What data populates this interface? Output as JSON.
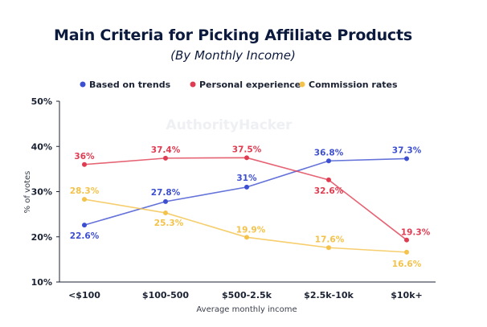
{
  "title": "Main Criteria for Picking Affiliate Products",
  "subtitle": "(By Monthly Income)",
  "watermark": "AuthorityHacker",
  "chart_data": {
    "type": "line",
    "categories": [
      "<$100",
      "$100-500",
      "$500-2.5k",
      "$2.5k-10k",
      "$10k+"
    ],
    "xlabel": "Average monthly income",
    "ylabel": "% of votes",
    "ylim": [
      10,
      50
    ],
    "yticks": [
      "10%",
      "20%",
      "30%",
      "40%",
      "50%"
    ],
    "grid": false,
    "legend_position": "top",
    "series": [
      {
        "name": "Based on trends",
        "color": "#3d4fd1",
        "values": [
          22.6,
          27.8,
          31,
          36.8,
          37.3
        ],
        "labels": [
          "22.6%",
          "27.8%",
          "31%",
          "36.8%",
          "37.3%"
        ]
      },
      {
        "name": "Personal experience",
        "color": "#e03c51",
        "values": [
          36,
          37.4,
          37.5,
          32.6,
          19.3
        ],
        "labels": [
          "36%",
          "37.4%",
          "37.5%",
          "32.6%",
          "19.3%"
        ]
      },
      {
        "name": "Commission rates",
        "color": "#f4c24a",
        "values": [
          28.3,
          25.3,
          19.9,
          17.6,
          16.6
        ],
        "labels": [
          "28.3%",
          "25.3%",
          "19.9%",
          "17.6%",
          "16.6%"
        ]
      }
    ]
  }
}
